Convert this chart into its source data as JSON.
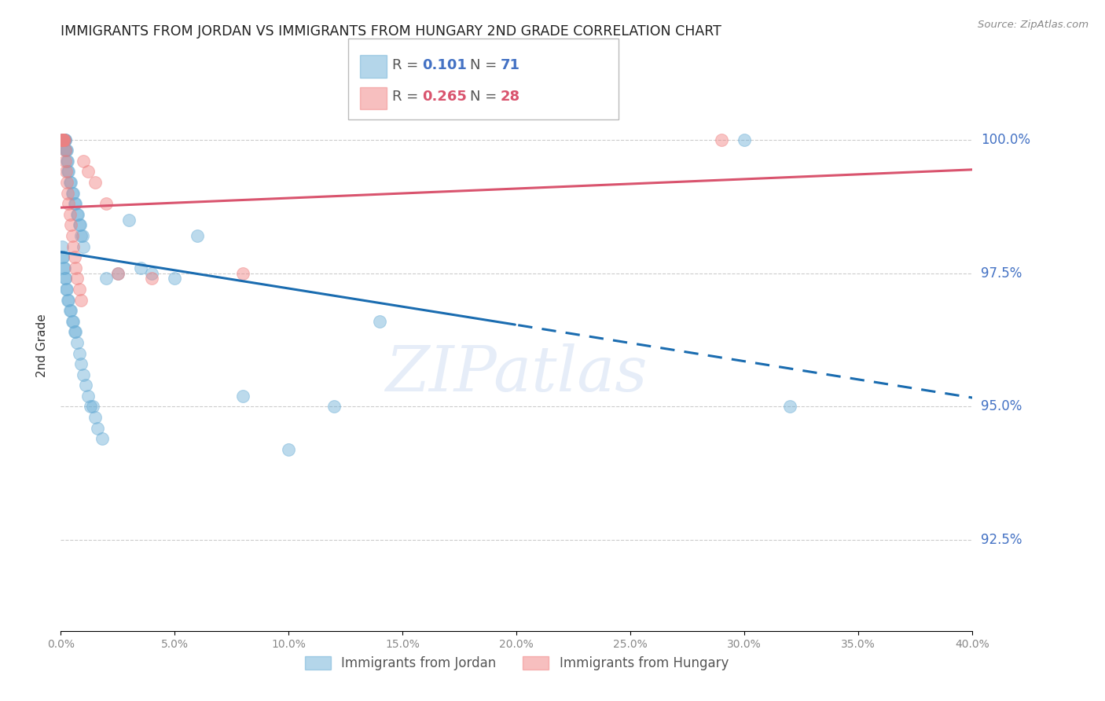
{
  "title": "IMMIGRANTS FROM JORDAN VS IMMIGRANTS FROM HUNGARY 2ND GRADE CORRELATION CHART",
  "source": "Source: ZipAtlas.com",
  "ylabel": "2nd Grade",
  "yticks": [
    100.0,
    97.5,
    95.0,
    92.5
  ],
  "ytick_labels": [
    "100.0%",
    "97.5%",
    "95.0%",
    "92.5%"
  ],
  "xmin": 0.0,
  "xmax": 40.0,
  "ymin": 90.8,
  "ymax": 101.5,
  "jordan_color": "#6baed6",
  "hungary_color": "#f08080",
  "jordan_line_color": "#1a6cb0",
  "hungary_line_color": "#d9546e",
  "jordan_R": 0.101,
  "jordan_N": 71,
  "hungary_R": 0.265,
  "hungary_N": 28,
  "watermark": "ZIPatlas",
  "jordan_points_x": [
    0.05,
    0.08,
    0.1,
    0.1,
    0.12,
    0.12,
    0.15,
    0.15,
    0.18,
    0.2,
    0.2,
    0.22,
    0.25,
    0.28,
    0.3,
    0.3,
    0.35,
    0.4,
    0.45,
    0.5,
    0.55,
    0.6,
    0.65,
    0.7,
    0.75,
    0.8,
    0.85,
    0.9,
    0.95,
    1.0,
    0.05,
    0.08,
    0.1,
    0.12,
    0.15,
    0.18,
    0.2,
    0.22,
    0.25,
    0.3,
    0.35,
    0.4,
    0.45,
    0.5,
    0.55,
    0.6,
    0.65,
    0.7,
    0.8,
    0.9,
    1.0,
    1.1,
    1.2,
    1.3,
    1.4,
    1.5,
    1.6,
    1.8,
    2.0,
    2.5,
    3.0,
    3.5,
    4.0,
    5.0,
    6.0,
    8.0,
    10.0,
    12.0,
    14.0,
    30.0,
    32.0
  ],
  "jordan_points_y": [
    100.0,
    100.0,
    100.0,
    100.0,
    100.0,
    100.0,
    100.0,
    100.0,
    100.0,
    100.0,
    99.8,
    99.8,
    99.8,
    99.6,
    99.6,
    99.4,
    99.4,
    99.2,
    99.2,
    99.0,
    99.0,
    98.8,
    98.8,
    98.6,
    98.6,
    98.4,
    98.4,
    98.2,
    98.2,
    98.0,
    98.0,
    97.8,
    97.8,
    97.6,
    97.6,
    97.4,
    97.4,
    97.2,
    97.2,
    97.0,
    97.0,
    96.8,
    96.8,
    96.6,
    96.6,
    96.4,
    96.4,
    96.2,
    96.0,
    95.8,
    95.6,
    95.4,
    95.2,
    95.0,
    95.0,
    94.8,
    94.6,
    94.4,
    97.4,
    97.5,
    98.5,
    97.6,
    97.5,
    97.4,
    98.2,
    95.2,
    94.2,
    95.0,
    96.6,
    100.0,
    95.0
  ],
  "hungary_points_x": [
    0.05,
    0.08,
    0.1,
    0.12,
    0.15,
    0.18,
    0.2,
    0.22,
    0.25,
    0.3,
    0.35,
    0.4,
    0.45,
    0.5,
    0.55,
    0.6,
    0.65,
    0.7,
    0.8,
    0.9,
    1.0,
    1.2,
    1.5,
    2.0,
    2.5,
    4.0,
    8.0,
    29.0
  ],
  "hungary_points_y": [
    100.0,
    100.0,
    100.0,
    100.0,
    100.0,
    99.8,
    99.6,
    99.4,
    99.2,
    99.0,
    98.8,
    98.6,
    98.4,
    98.2,
    98.0,
    97.8,
    97.6,
    97.4,
    97.2,
    97.0,
    99.6,
    99.4,
    99.2,
    98.8,
    97.5,
    97.4,
    97.5,
    100.0
  ]
}
